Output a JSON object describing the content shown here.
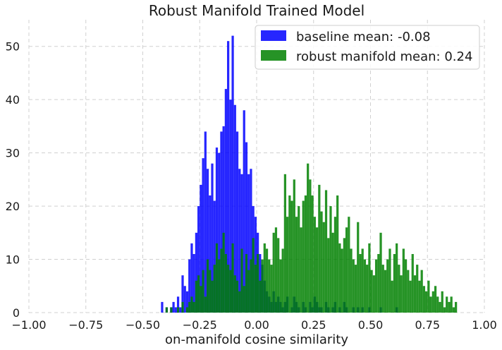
{
  "chart_data": {
    "type": "bar",
    "title": "Robust Manifold Trained Model",
    "xlabel": "on-manifold cosine similarity",
    "ylabel": "",
    "xlim": [
      -1.0,
      1.0
    ],
    "ylim": [
      0,
      55
    ],
    "xticks": [
      "−1.00",
      "−0.75",
      "−0.50",
      "−0.25",
      "0.00",
      "0.25",
      "0.50",
      "0.75",
      "1.00"
    ],
    "yticks": [
      "0",
      "10",
      "20",
      "30",
      "40",
      "50"
    ],
    "grid": true,
    "legend_position": "top-right",
    "bin_width": 0.01,
    "series": [
      {
        "name": "baseline mean: -0.08",
        "color": "#0000ff",
        "x": [
          -0.42,
          -0.41,
          -0.4,
          -0.39,
          -0.38,
          -0.37,
          -0.36,
          -0.35,
          -0.34,
          -0.33,
          -0.32,
          -0.31,
          -0.3,
          -0.29,
          -0.28,
          -0.27,
          -0.26,
          -0.25,
          -0.24,
          -0.23,
          -0.22,
          -0.21,
          -0.2,
          -0.19,
          -0.18,
          -0.17,
          -0.16,
          -0.15,
          -0.14,
          -0.13,
          -0.12,
          -0.11,
          -0.1,
          -0.09,
          -0.08,
          -0.07,
          -0.06,
          -0.05,
          -0.04,
          -0.03,
          -0.02,
          -0.01,
          0.0,
          0.01,
          0.02,
          0.03,
          0.04,
          0.05,
          0.06,
          0.07,
          0.08,
          0.09,
          0.1,
          0.11,
          0.12,
          0.13,
          0.14,
          0.15,
          0.16,
          0.17,
          0.18,
          0.19,
          0.2,
          0.21,
          0.22,
          0.23,
          0.24,
          0.25,
          0.26,
          0.27,
          0.28,
          0.29,
          0.3,
          0.31,
          0.32,
          0.33,
          0.34,
          0.35,
          0.36,
          0.37,
          0.38,
          0.39,
          0.4,
          0.41,
          0.42,
          0.43,
          0.44,
          0.45,
          0.46,
          0.47,
          0.48,
          0.49,
          0.5,
          0.51,
          0.52,
          0.53,
          0.54,
          0.55,
          0.56,
          0.57,
          0.58,
          0.59,
          0.6,
          0.61
        ],
        "values": [
          2,
          0,
          1,
          0,
          1,
          2,
          1,
          3,
          1,
          7,
          5,
          4,
          10,
          13,
          11,
          15,
          20,
          24,
          29,
          34,
          27,
          22,
          28,
          21,
          31,
          30,
          34,
          35,
          42,
          51,
          40,
          52,
          39,
          34,
          27,
          26,
          38,
          32,
          26,
          27,
          20,
          18,
          15,
          11,
          9,
          6,
          4,
          3,
          2,
          4,
          2,
          3,
          2,
          1,
          2,
          3,
          0,
          1,
          3,
          2,
          1,
          0,
          2,
          1,
          0,
          2,
          1,
          3,
          2,
          1,
          1,
          0,
          2,
          1,
          0,
          1,
          2,
          0,
          1,
          0,
          2,
          1,
          0,
          0,
          1,
          0,
          1,
          0,
          1,
          0,
          0,
          1,
          0,
          0,
          0,
          0,
          1,
          0,
          0,
          0,
          0,
          0,
          0,
          1
        ]
      },
      {
        "name": "robust manifold mean: 0.24",
        "color": "#008000",
        "x": [
          -0.4,
          -0.39,
          -0.38,
          -0.37,
          -0.36,
          -0.35,
          -0.34,
          -0.33,
          -0.32,
          -0.31,
          -0.3,
          -0.29,
          -0.28,
          -0.27,
          -0.26,
          -0.25,
          -0.24,
          -0.23,
          -0.22,
          -0.21,
          -0.2,
          -0.19,
          -0.18,
          -0.17,
          -0.16,
          -0.15,
          -0.14,
          -0.13,
          -0.12,
          -0.11,
          -0.1,
          -0.09,
          -0.08,
          -0.07,
          -0.06,
          -0.05,
          -0.04,
          -0.03,
          -0.02,
          -0.01,
          0.0,
          0.01,
          0.02,
          0.03,
          0.04,
          0.05,
          0.06,
          0.07,
          0.08,
          0.09,
          0.1,
          0.11,
          0.12,
          0.13,
          0.14,
          0.15,
          0.16,
          0.17,
          0.18,
          0.19,
          0.2,
          0.21,
          0.22,
          0.23,
          0.24,
          0.25,
          0.26,
          0.27,
          0.28,
          0.29,
          0.3,
          0.31,
          0.32,
          0.33,
          0.34,
          0.35,
          0.36,
          0.37,
          0.38,
          0.39,
          0.4,
          0.41,
          0.42,
          0.43,
          0.44,
          0.45,
          0.46,
          0.47,
          0.48,
          0.49,
          0.5,
          0.51,
          0.52,
          0.53,
          0.54,
          0.55,
          0.56,
          0.57,
          0.58,
          0.59,
          0.6,
          0.61,
          0.62,
          0.63,
          0.64,
          0.65,
          0.66,
          0.67,
          0.68,
          0.69,
          0.7,
          0.71,
          0.72,
          0.73,
          0.74,
          0.75,
          0.76,
          0.77,
          0.78,
          0.79,
          0.8,
          0.81,
          0.82,
          0.83,
          0.84,
          0.85,
          0.86,
          0.87
        ],
        "values": [
          1,
          0,
          1,
          0,
          0,
          1,
          0,
          2,
          0,
          1,
          2,
          3,
          2,
          6,
          7,
          5,
          8,
          3,
          10,
          8,
          6,
          9,
          13,
          10,
          12,
          15,
          11,
          9,
          8,
          13,
          7,
          6,
          4,
          12,
          5,
          11,
          8,
          10,
          14,
          9,
          11,
          6,
          10,
          13,
          12,
          10,
          9,
          15,
          16,
          14,
          10,
          12,
          26,
          18,
          22,
          21,
          25,
          18,
          20,
          16,
          21,
          22,
          28,
          25,
          22,
          18,
          16,
          24,
          19,
          17,
          23,
          14,
          20,
          15,
          18,
          22,
          13,
          12,
          14,
          16,
          18,
          12,
          10,
          9,
          17,
          11,
          12,
          10,
          9,
          13,
          8,
          7,
          10,
          11,
          15,
          9,
          8,
          10,
          12,
          6,
          11,
          13,
          9,
          7,
          12,
          10,
          8,
          6,
          11,
          7,
          9,
          6,
          8,
          5,
          4,
          6,
          3,
          4,
          5,
          3,
          2,
          4,
          1,
          3,
          2,
          3,
          1,
          2
        ]
      }
    ]
  }
}
